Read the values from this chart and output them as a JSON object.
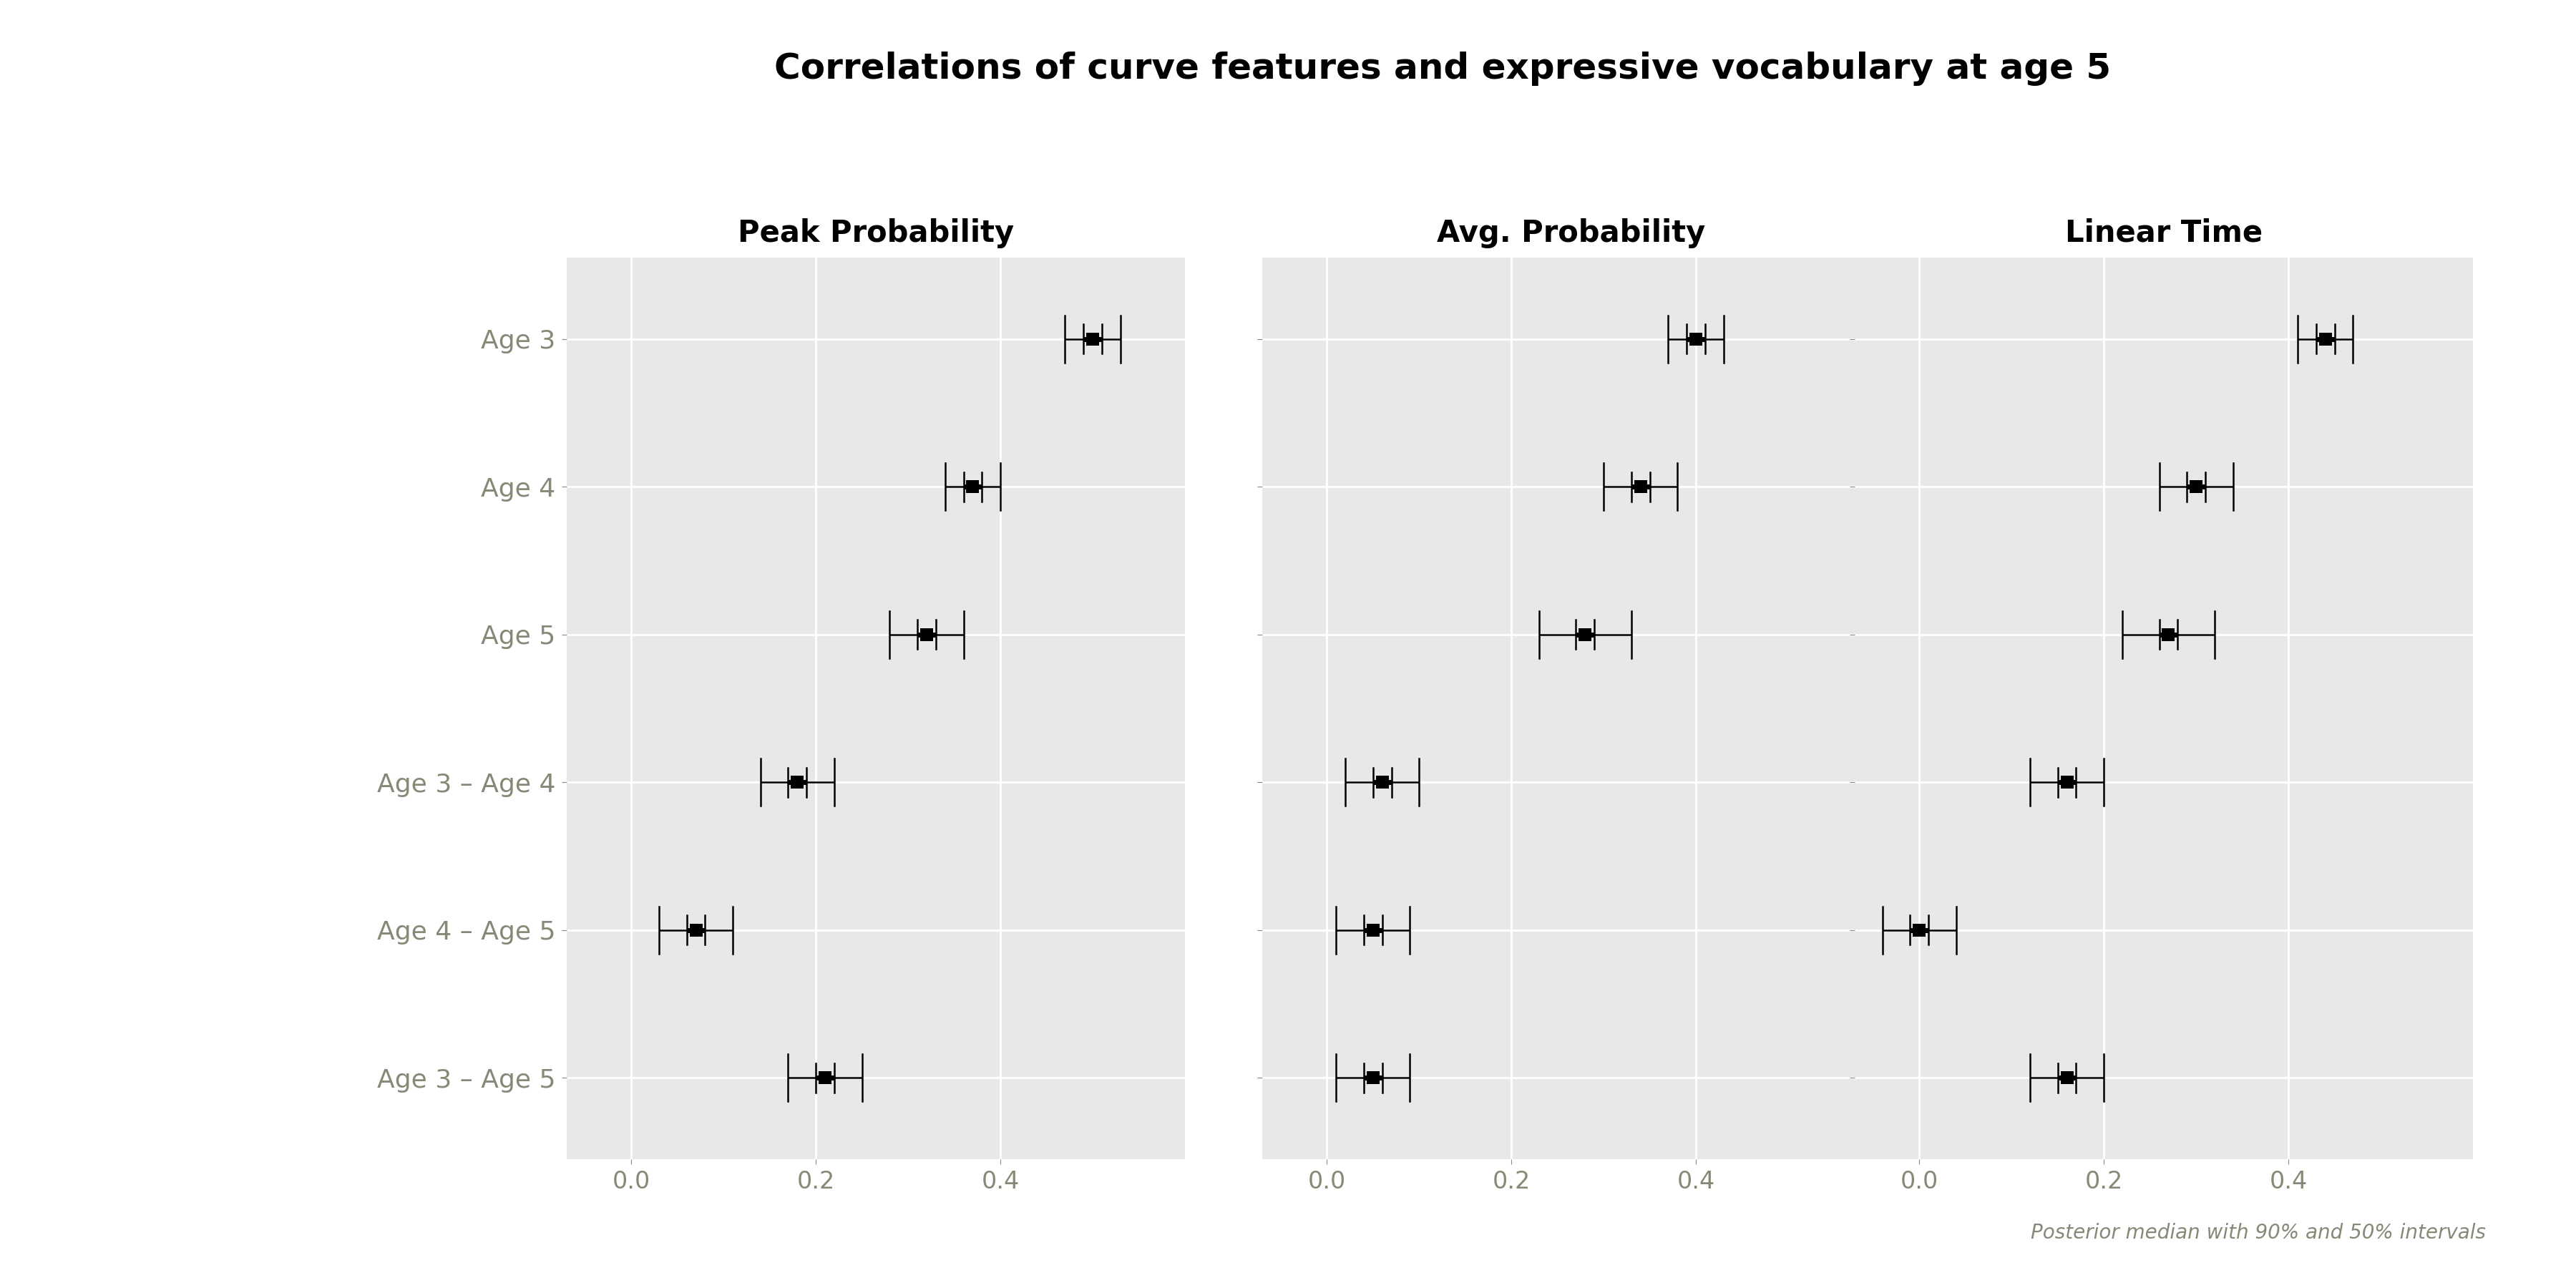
{
  "title": "Correlations of curve features and expressive vocabulary at age 5",
  "panels": [
    "Peak Probability",
    "Avg. Probability",
    "Linear Time"
  ],
  "y_labels": [
    "Age 3",
    "Age 4",
    "Age 5",
    "Age 3 – Age 4",
    "Age 4 – Age 5",
    "Age 3 – Age 5"
  ],
  "panel_data": {
    "Peak Probability": {
      "medians": [
        0.5,
        0.37,
        0.32,
        0.18,
        0.07,
        0.21
      ],
      "ci90_low": [
        0.47,
        0.34,
        0.28,
        0.14,
        0.03,
        0.17
      ],
      "ci90_high": [
        0.53,
        0.4,
        0.36,
        0.22,
        0.11,
        0.25
      ],
      "ci50_low": [
        0.49,
        0.36,
        0.31,
        0.17,
        0.06,
        0.2
      ],
      "ci50_high": [
        0.51,
        0.38,
        0.33,
        0.19,
        0.08,
        0.22
      ]
    },
    "Avg. Probability": {
      "medians": [
        0.4,
        0.34,
        0.28,
        0.06,
        0.05,
        0.05
      ],
      "ci90_low": [
        0.37,
        0.3,
        0.23,
        0.02,
        0.01,
        0.01
      ],
      "ci90_high": [
        0.43,
        0.38,
        0.33,
        0.1,
        0.09,
        0.09
      ],
      "ci50_low": [
        0.39,
        0.33,
        0.27,
        0.05,
        0.04,
        0.04
      ],
      "ci50_high": [
        0.41,
        0.35,
        0.29,
        0.07,
        0.06,
        0.06
      ]
    },
    "Linear Time": {
      "medians": [
        0.44,
        0.3,
        0.27,
        0.16,
        0.0,
        0.16
      ],
      "ci90_low": [
        0.41,
        0.26,
        0.22,
        0.12,
        -0.04,
        0.12
      ],
      "ci90_high": [
        0.47,
        0.34,
        0.32,
        0.2,
        0.04,
        0.2
      ],
      "ci50_low": [
        0.43,
        0.29,
        0.26,
        0.15,
        -0.01,
        0.15
      ],
      "ci50_high": [
        0.45,
        0.31,
        0.28,
        0.17,
        0.01,
        0.17
      ]
    }
  },
  "xlim": [
    -0.07,
    0.6
  ],
  "xticks": [
    0.0,
    0.2,
    0.4
  ],
  "panel_bg_color": "#e8e8e8",
  "outer_bg_color": "#ffffff",
  "grid_color": "#ffffff",
  "point_color": "#000000",
  "label_color": "#888877",
  "caption": "Posterior median with 90% and 50% intervals",
  "title_fontsize": 36,
  "panel_title_fontsize": 30,
  "label_fontsize": 26,
  "tick_fontsize": 24,
  "caption_fontsize": 20
}
